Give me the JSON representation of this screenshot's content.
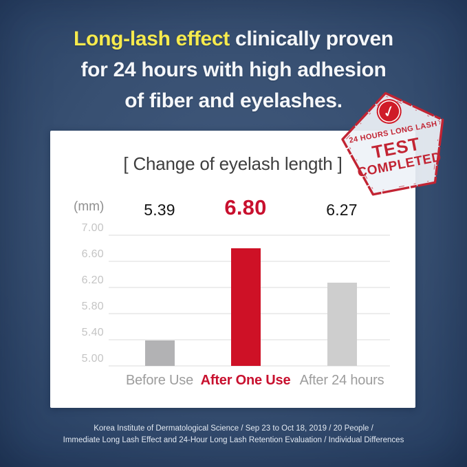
{
  "header": {
    "line1_highlight": "Long-lash effect",
    "line1_rest": " clinically proven",
    "line2": "for 24 hours with high adhesion",
    "line3": "of fiber and eyelashes."
  },
  "stamp": {
    "line1": "24 HOURS LONG LASH",
    "line2": "TEST",
    "line3": "COMPLETED",
    "check_glyph": "✓",
    "border_color": "#c22433"
  },
  "chart_data": {
    "type": "bar",
    "title": "[ Change of eyelash length ]",
    "unit_label": "(mm)",
    "categories": [
      "Before Use",
      "After One Use",
      "After 24 hours"
    ],
    "values": [
      5.39,
      6.8,
      6.27
    ],
    "value_labels": [
      "5.39",
      "6.80",
      "6.27"
    ],
    "highlight_index": 1,
    "y_ticks": [
      "7.00",
      "6.60",
      "6.20",
      "5.80",
      "5.40",
      "5.00"
    ],
    "ylim": [
      5.0,
      7.0
    ],
    "bar_colors": [
      "#b2b2b4",
      "#ce1126",
      "#cecece"
    ],
    "highlight_color": "#c8102e",
    "grid": true,
    "legend": false
  },
  "footer": {
    "line1": "Korea Institute of Dermatological Science / Sep 23 to Oct 18, 2019 / 20 People /",
    "line2": "Immediate Long Lash Effect and 24-Hour Long Lash Retention Evaluation / Individual Differences"
  },
  "colors": {
    "background_center": "#41597c",
    "background_edge": "#243b5c",
    "headline_white": "#f5f7fa",
    "headline_yellow": "#f6ea4d",
    "card": "#ffffff",
    "title_gray": "#3e3e3e",
    "tick_gray": "#c4c4c4",
    "axis_label_gray": "#9c9c9c",
    "accent_red": "#c8102e"
  }
}
